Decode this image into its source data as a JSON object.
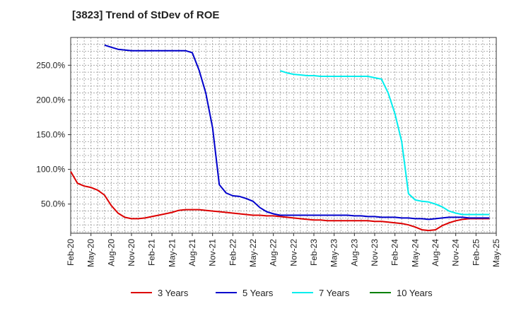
{
  "chart_data": {
    "type": "line",
    "title": "[3823]  Trend of StDev of ROE",
    "xlabel": "",
    "ylabel": "",
    "x_tick_labels": [
      "Feb-20",
      "May-20",
      "Aug-20",
      "Nov-20",
      "Feb-21",
      "May-21",
      "Aug-21",
      "Nov-21",
      "Feb-22",
      "May-22",
      "Aug-22",
      "Nov-22",
      "Feb-23",
      "May-23",
      "Aug-23",
      "Nov-23",
      "Feb-24",
      "May-24",
      "Aug-24",
      "Nov-24",
      "Feb-25",
      "May-25"
    ],
    "y_tick_labels": [
      "50.0%",
      "100.0%",
      "150.0%",
      "200.0%",
      "250.0%"
    ],
    "y_tick_values": [
      50,
      100,
      150,
      200,
      250
    ],
    "ylim": [
      8,
      290
    ],
    "x_range_months": [
      0,
      63
    ],
    "grid": true,
    "legend_position": "bottom",
    "series": [
      {
        "name": "3 Years",
        "color": "#dd0000",
        "points": [
          [
            0,
            97
          ],
          [
            1,
            80
          ],
          [
            2,
            76
          ],
          [
            3,
            74
          ],
          [
            4,
            70
          ],
          [
            5,
            63
          ],
          [
            6,
            48
          ],
          [
            7,
            37
          ],
          [
            8,
            31
          ],
          [
            9,
            29
          ],
          [
            10,
            29
          ],
          [
            11,
            30
          ],
          [
            12,
            32
          ],
          [
            13,
            34
          ],
          [
            14,
            36
          ],
          [
            15,
            38
          ],
          [
            16,
            41
          ],
          [
            17,
            42
          ],
          [
            18,
            42
          ],
          [
            19,
            42
          ],
          [
            20,
            41
          ],
          [
            21,
            40
          ],
          [
            22,
            39
          ],
          [
            23,
            38
          ],
          [
            24,
            37
          ],
          [
            25,
            36
          ],
          [
            26,
            35
          ],
          [
            27,
            34
          ],
          [
            28,
            34
          ],
          [
            29,
            33
          ],
          [
            30,
            33
          ],
          [
            31,
            32
          ],
          [
            32,
            31
          ],
          [
            33,
            30
          ],
          [
            34,
            29
          ],
          [
            35,
            28
          ],
          [
            36,
            27
          ],
          [
            37,
            27
          ],
          [
            38,
            26
          ],
          [
            39,
            26
          ],
          [
            40,
            26
          ],
          [
            41,
            26
          ],
          [
            42,
            26
          ],
          [
            43,
            26
          ],
          [
            44,
            26
          ],
          [
            45,
            25
          ],
          [
            46,
            25
          ],
          [
            47,
            24
          ],
          [
            48,
            23
          ],
          [
            49,
            22
          ],
          [
            50,
            20
          ],
          [
            51,
            17
          ],
          [
            52,
            13
          ],
          [
            53,
            12
          ],
          [
            54,
            13
          ],
          [
            55,
            19
          ],
          [
            56,
            23
          ],
          [
            57,
            26
          ],
          [
            58,
            28
          ],
          [
            59,
            29
          ],
          [
            60,
            29
          ],
          [
            61,
            29
          ],
          [
            62,
            29
          ]
        ]
      },
      {
        "name": "5 Years",
        "color": "#0000cc",
        "points": [
          [
            5,
            279
          ],
          [
            6,
            276
          ],
          [
            7,
            273
          ],
          [
            8,
            272
          ],
          [
            9,
            271
          ],
          [
            10,
            271
          ],
          [
            11,
            271
          ],
          [
            12,
            271
          ],
          [
            13,
            271
          ],
          [
            14,
            271
          ],
          [
            15,
            271
          ],
          [
            16,
            271
          ],
          [
            17,
            271
          ],
          [
            18,
            268
          ],
          [
            19,
            243
          ],
          [
            20,
            210
          ],
          [
            21,
            160
          ],
          [
            22,
            78
          ],
          [
            23,
            66
          ],
          [
            24,
            62
          ],
          [
            25,
            61
          ],
          [
            26,
            58
          ],
          [
            27,
            54
          ],
          [
            28,
            45
          ],
          [
            29,
            39
          ],
          [
            30,
            36
          ],
          [
            31,
            34
          ],
          [
            32,
            34
          ],
          [
            33,
            34
          ],
          [
            34,
            34
          ],
          [
            35,
            34
          ],
          [
            36,
            34
          ],
          [
            37,
            34
          ],
          [
            38,
            34
          ],
          [
            39,
            34
          ],
          [
            40,
            34
          ],
          [
            41,
            34
          ],
          [
            42,
            33
          ],
          [
            43,
            33
          ],
          [
            44,
            32
          ],
          [
            45,
            32
          ],
          [
            46,
            31
          ],
          [
            47,
            31
          ],
          [
            48,
            31
          ],
          [
            49,
            30
          ],
          [
            50,
            30
          ],
          [
            51,
            29
          ],
          [
            52,
            29
          ],
          [
            53,
            28
          ],
          [
            54,
            29
          ],
          [
            55,
            30
          ],
          [
            56,
            31
          ],
          [
            57,
            31
          ],
          [
            58,
            31
          ],
          [
            59,
            30
          ],
          [
            60,
            30
          ],
          [
            61,
            30
          ],
          [
            62,
            30
          ]
        ]
      },
      {
        "name": "7 Years",
        "color": "#00eeee",
        "points": [
          [
            31,
            242
          ],
          [
            32,
            239
          ],
          [
            33,
            237
          ],
          [
            34,
            236
          ],
          [
            35,
            235
          ],
          [
            36,
            235
          ],
          [
            37,
            234
          ],
          [
            38,
            234
          ],
          [
            39,
            234
          ],
          [
            40,
            234
          ],
          [
            41,
            234
          ],
          [
            42,
            234
          ],
          [
            43,
            234
          ],
          [
            44,
            234
          ],
          [
            45,
            232
          ],
          [
            46,
            230
          ],
          [
            47,
            210
          ],
          [
            48,
            180
          ],
          [
            49,
            140
          ],
          [
            50,
            65
          ],
          [
            51,
            56
          ],
          [
            52,
            54
          ],
          [
            53,
            53
          ],
          [
            54,
            50
          ],
          [
            55,
            46
          ],
          [
            56,
            40
          ],
          [
            57,
            37
          ],
          [
            58,
            35
          ],
          [
            59,
            35
          ],
          [
            60,
            35
          ],
          [
            61,
            35
          ],
          [
            62,
            35
          ]
        ]
      },
      {
        "name": "10 Years",
        "color": "#008000",
        "points": []
      }
    ]
  }
}
